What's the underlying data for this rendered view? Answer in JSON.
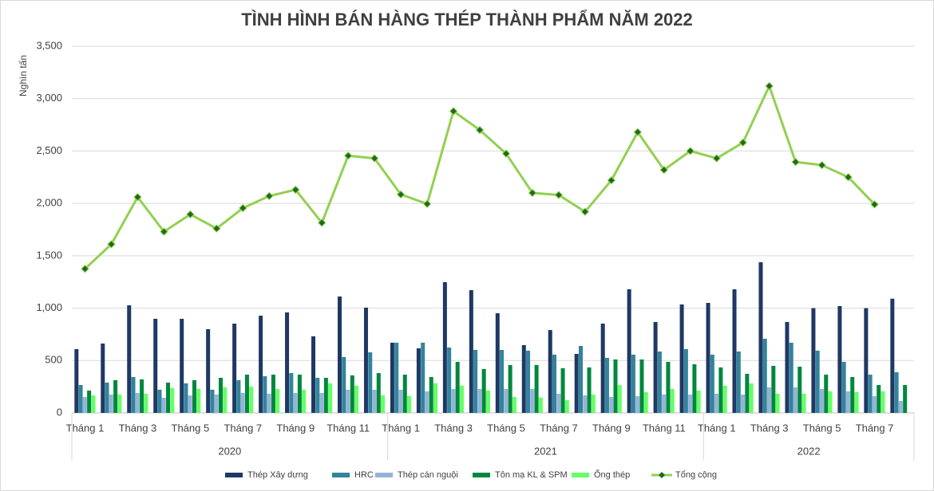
{
  "chart_data": {
    "type": "bar_line",
    "title": "TÌNH HÌNH BÁN HÀNG THÉP THÀNH PHẨM NĂM 2022",
    "y_label": "Nghìn tấn",
    "categories": [
      "Tháng 1",
      null,
      "Tháng 3",
      null,
      "Tháng 5",
      null,
      "Tháng 7",
      null,
      "Tháng 9",
      null,
      "Tháng 11",
      null,
      "Tháng 1",
      null,
      "Tháng 3",
      null,
      "Tháng 5",
      null,
      "Tháng 7",
      null,
      "Tháng 9",
      null,
      "Tháng 11",
      null,
      "Tháng 1",
      null,
      "Tháng 3",
      null,
      "Tháng 5",
      null,
      "Tháng 7",
      null
    ],
    "x_groups": [
      "2020",
      "2021",
      "2022"
    ],
    "ylim": [
      0,
      3500
    ],
    "yticks": [
      0,
      500,
      {
        "value": 1000,
        "label": "1,000"
      },
      {
        "value": 1500,
        "label": "1,500"
      },
      {
        "value": 2000,
        "label": "2,000"
      },
      {
        "value": 2500,
        "label": "2,500"
      },
      {
        "value": 3000,
        "label": "3,000"
      },
      {
        "value": 3500,
        "label": "3,500"
      }
    ],
    "grid": true,
    "legend": "bottom",
    "series": [
      {
        "name": "Thép Xây dựng",
        "type": "bar",
        "color": "#1f3864",
        "values": [
          609,
          662,
          1027,
          898,
          898,
          799,
          852,
          928,
          959,
          731,
          1111,
          1005,
          670,
          616,
          1248,
          1172,
          951,
          647,
          791,
          563,
          852,
          1180,
          868,
          1035,
          1050,
          1180,
          1438,
          868,
          1000,
          1020,
          1000,
          1090
        ]
      },
      {
        "name": "HRC",
        "type": "bar",
        "color": "#31849b",
        "values": [
          266,
          289,
          342,
          221,
          282,
          221,
          312,
          350,
          380,
          335,
          533,
          578,
          670,
          670,
          624,
          601,
          601,
          594,
          556,
          639,
          525,
          556,
          586,
          609,
          556,
          586,
          708,
          670,
          594,
          487,
          365,
          388
        ]
      },
      {
        "name": "Thép cán nguội",
        "type": "bar",
        "color": "#95b3d7",
        "values": [
          152,
          175,
          190,
          145,
          167,
          175,
          190,
          183,
          190,
          190,
          221,
          221,
          221,
          206,
          228,
          228,
          228,
          228,
          183,
          167,
          152,
          160,
          175,
          175,
          183,
          175,
          244,
          244,
          228,
          206,
          160,
          114
        ]
      },
      {
        "name": "Tôn mạ KL & SPM",
        "type": "bar",
        "color": "#00873e",
        "values": [
          213,
          312,
          320,
          289,
          312,
          335,
          365,
          365,
          365,
          335,
          358,
          380,
          365,
          342,
          487,
          419,
          457,
          457,
          426,
          434,
          510,
          510,
          487,
          464,
          434,
          373,
          449,
          441,
          365,
          342,
          266,
          266
        ]
      },
      {
        "name": "Ống thép",
        "type": "bar",
        "color": "#66ff66",
        "values": [
          167,
          175,
          183,
          236,
          228,
          244,
          251,
          228,
          221,
          282,
          259,
          167,
          160,
          282,
          259,
          213,
          152,
          145,
          122,
          175,
          266,
          198,
          228,
          213,
          259,
          282,
          183,
          183,
          206,
          198,
          206,
          null
        ]
      },
      {
        "name": "Tổng cộng",
        "type": "line",
        "color": "#92d050",
        "marker_color": "#1e6b1e",
        "values": [
          1375,
          1610,
          2060,
          1730,
          1895,
          1760,
          1955,
          2070,
          2130,
          1815,
          2455,
          2430,
          2085,
          1995,
          2880,
          2700,
          2475,
          2100,
          2080,
          1920,
          2220,
          2680,
          2320,
          2500,
          2430,
          2580,
          3120,
          2395,
          2365,
          2250,
          1990,
          null
        ]
      }
    ]
  }
}
